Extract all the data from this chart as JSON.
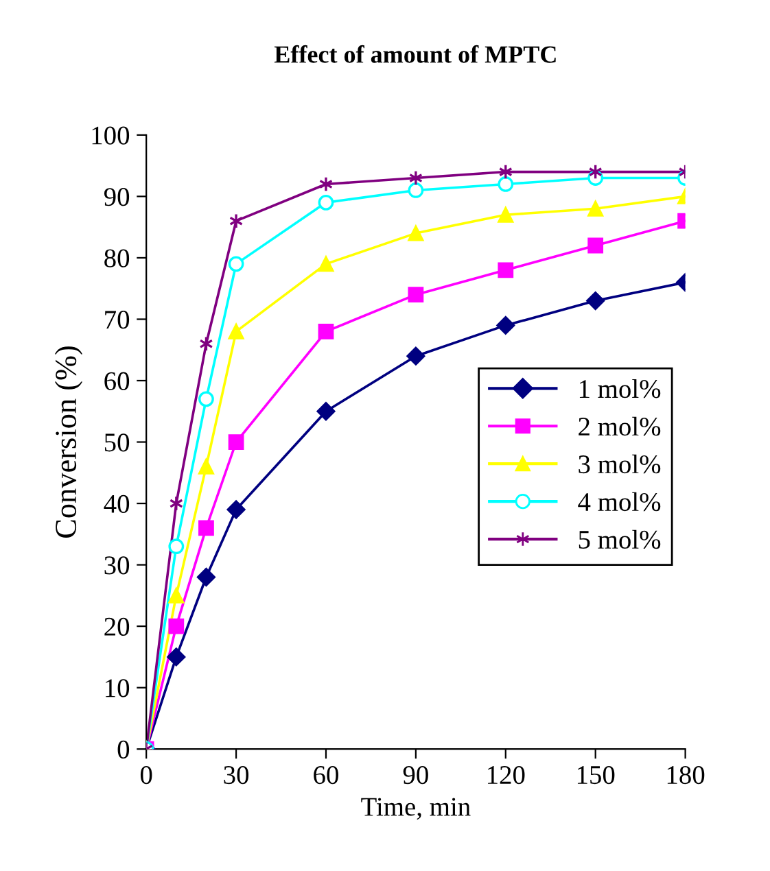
{
  "chart_data": {
    "type": "line",
    "title": "Effect of amount of MPTC",
    "xlabel": "Time, min",
    "ylabel": "Conversion (%)",
    "x": [
      0,
      10,
      20,
      30,
      60,
      90,
      120,
      150,
      180
    ],
    "xlim": [
      0,
      180
    ],
    "xticks": [
      0,
      30,
      60,
      90,
      120,
      150,
      180
    ],
    "ylim": [
      0,
      100
    ],
    "yticks": [
      0,
      10,
      20,
      30,
      40,
      50,
      60,
      70,
      80,
      90,
      100
    ],
    "grid": false,
    "legend": "right",
    "line_style": "solid",
    "series": [
      {
        "name": "1 mol%",
        "color": "#000080",
        "marker": "diamond",
        "values": [
          0,
          15,
          28,
          39,
          55,
          64,
          69,
          73,
          76
        ]
      },
      {
        "name": "2 mol%",
        "color": "#ff00ff",
        "marker": "square",
        "values": [
          0,
          20,
          36,
          50,
          68,
          74,
          78,
          82,
          86
        ]
      },
      {
        "name": "3 mol%",
        "color": "#ffff00",
        "marker": "triangle",
        "values": [
          0,
          25,
          46,
          68,
          79,
          84,
          87,
          88,
          90
        ]
      },
      {
        "name": "4 mol%",
        "color": "#00ffff",
        "marker": "circle",
        "values": [
          0,
          33,
          57,
          79,
          89,
          91,
          92,
          93,
          93
        ]
      },
      {
        "name": "5 mol%",
        "color": "#800080",
        "marker": "cross",
        "values": [
          0,
          40,
          66,
          86,
          92,
          93,
          94,
          94,
          94
        ]
      }
    ]
  }
}
